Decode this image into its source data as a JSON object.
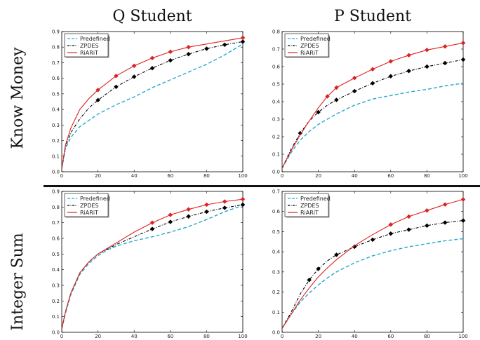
{
  "col_titles": [
    "Q Student",
    "P Student"
  ],
  "row_titles": [
    "Know Money",
    "Integer Sum"
  ],
  "colors": {
    "Predefined": "#22aacc",
    "ZPDES": "#000000",
    "RiARiT": "#dd2222"
  },
  "chart_data": [
    {
      "type": "line",
      "row": "Know Money",
      "col": "Q Student",
      "xlim": [
        0,
        100
      ],
      "ylim": [
        0,
        0.9
      ],
      "xticks": [
        "0",
        "20",
        "40",
        "60",
        "80",
        "100"
      ],
      "yticks": [
        "0.0",
        "0.1",
        "0.2",
        "0.3",
        "0.4",
        "0.5",
        "0.6",
        "0.7",
        "0.8",
        "0.9"
      ],
      "legend": "top-left",
      "series": [
        {
          "name": "Predefined",
          "style": "dashed",
          "x": [
            0,
            2,
            5,
            10,
            15,
            20,
            30,
            40,
            50,
            60,
            70,
            80,
            90,
            100
          ],
          "y": [
            0.02,
            0.15,
            0.22,
            0.29,
            0.33,
            0.37,
            0.43,
            0.48,
            0.54,
            0.59,
            0.64,
            0.69,
            0.75,
            0.82
          ]
        },
        {
          "name": "ZPDES",
          "style": "dashdot-diamond",
          "x": [
            0,
            2,
            5,
            10,
            15,
            20,
            30,
            40,
            50,
            60,
            70,
            80,
            90,
            100
          ],
          "y": [
            0.02,
            0.16,
            0.25,
            0.34,
            0.41,
            0.46,
            0.545,
            0.61,
            0.665,
            0.715,
            0.755,
            0.79,
            0.815,
            0.835
          ],
          "markers": [
            20,
            30,
            40,
            50,
            60,
            70,
            80,
            90,
            100
          ]
        },
        {
          "name": "RiARiT",
          "style": "solid-diamond",
          "x": [
            0,
            2,
            5,
            10,
            15,
            20,
            30,
            40,
            50,
            60,
            70,
            80,
            90,
            100
          ],
          "y": [
            0.02,
            0.17,
            0.28,
            0.4,
            0.47,
            0.525,
            0.615,
            0.68,
            0.73,
            0.77,
            0.8,
            0.82,
            0.84,
            0.86
          ],
          "markers": [
            20,
            30,
            40,
            50,
            60,
            70,
            100
          ]
        }
      ]
    },
    {
      "type": "line",
      "row": "Know Money",
      "col": "P Student",
      "xlim": [
        0,
        100
      ],
      "ylim": [
        0,
        0.8
      ],
      "xticks": [
        "0",
        "20",
        "40",
        "60",
        "80",
        "100"
      ],
      "yticks": [
        "0.0",
        "0.1",
        "0.2",
        "0.3",
        "0.4",
        "0.5",
        "0.6",
        "0.7",
        "0.8"
      ],
      "legend": "top-left",
      "series": [
        {
          "name": "Predefined",
          "style": "dashed",
          "x": [
            0,
            5,
            10,
            15,
            20,
            25,
            30,
            40,
            50,
            60,
            70,
            80,
            90,
            100
          ],
          "y": [
            0.02,
            0.11,
            0.18,
            0.23,
            0.27,
            0.3,
            0.33,
            0.38,
            0.415,
            0.435,
            0.455,
            0.47,
            0.49,
            0.505
          ]
        },
        {
          "name": "ZPDES",
          "style": "dashdot-diamond",
          "x": [
            0,
            5,
            10,
            15,
            20,
            25,
            30,
            40,
            50,
            60,
            70,
            80,
            90,
            100
          ],
          "y": [
            0.02,
            0.13,
            0.22,
            0.29,
            0.34,
            0.38,
            0.41,
            0.46,
            0.505,
            0.545,
            0.575,
            0.6,
            0.62,
            0.64
          ],
          "markers": [
            10,
            20,
            30,
            40,
            50,
            60,
            70,
            80,
            90,
            100
          ]
        },
        {
          "name": "RiARiT",
          "style": "solid-diamond",
          "x": [
            0,
            5,
            10,
            15,
            20,
            25,
            30,
            40,
            50,
            60,
            70,
            80,
            90,
            100
          ],
          "y": [
            0.02,
            0.12,
            0.21,
            0.29,
            0.365,
            0.43,
            0.48,
            0.535,
            0.585,
            0.63,
            0.665,
            0.695,
            0.715,
            0.735
          ],
          "markers": [
            25,
            30,
            40,
            50,
            60,
            70,
            80,
            90,
            100
          ]
        }
      ]
    },
    {
      "type": "line",
      "row": "Integer Sum",
      "col": "Q Student",
      "xlim": [
        0,
        100
      ],
      "ylim": [
        0,
        0.9
      ],
      "xticks": [
        "0",
        "20",
        "40",
        "60",
        "80",
        "100"
      ],
      "yticks": [
        "0.0",
        "0.1",
        "0.2",
        "0.3",
        "0.4",
        "0.5",
        "0.6",
        "0.7",
        "0.8",
        "0.9"
      ],
      "legend": "top-left",
      "series": [
        {
          "name": "Predefined",
          "style": "dashed",
          "x": [
            0,
            2,
            5,
            10,
            15,
            20,
            25,
            30,
            40,
            50,
            60,
            70,
            80,
            90,
            100
          ],
          "y": [
            0.02,
            0.12,
            0.24,
            0.37,
            0.44,
            0.49,
            0.525,
            0.55,
            0.585,
            0.61,
            0.64,
            0.675,
            0.72,
            0.77,
            0.81
          ]
        },
        {
          "name": "ZPDES",
          "style": "dashdot-diamond",
          "x": [
            0,
            2,
            5,
            10,
            15,
            20,
            25,
            30,
            40,
            50,
            60,
            70,
            80,
            90,
            100
          ],
          "y": [
            0.02,
            0.13,
            0.25,
            0.38,
            0.45,
            0.5,
            0.53,
            0.56,
            0.61,
            0.66,
            0.705,
            0.74,
            0.77,
            0.795,
            0.815
          ],
          "markers": [
            50,
            60,
            70,
            80,
            90,
            100
          ]
        },
        {
          "name": "RiARiT",
          "style": "solid-diamond",
          "x": [
            0,
            2,
            5,
            10,
            15,
            20,
            25,
            30,
            40,
            50,
            60,
            70,
            80,
            90,
            100
          ],
          "y": [
            0.02,
            0.13,
            0.25,
            0.38,
            0.45,
            0.5,
            0.535,
            0.57,
            0.64,
            0.7,
            0.75,
            0.785,
            0.815,
            0.835,
            0.85
          ],
          "markers": [
            50,
            60,
            70,
            80,
            90,
            100
          ]
        }
      ]
    },
    {
      "type": "line",
      "row": "Integer Sum",
      "col": "P Student",
      "xlim": [
        0,
        100
      ],
      "ylim": [
        0,
        0.7
      ],
      "xticks": [
        "0",
        "20",
        "40",
        "60",
        "80",
        "100"
      ],
      "yticks": [
        "0.0",
        "0.1",
        "0.2",
        "0.3",
        "0.4",
        "0.5",
        "0.6",
        "0.7"
      ],
      "legend": "top-left",
      "series": [
        {
          "name": "Predefined",
          "style": "dashed",
          "x": [
            0,
            5,
            10,
            15,
            20,
            25,
            30,
            40,
            50,
            60,
            70,
            80,
            90,
            100
          ],
          "y": [
            0.02,
            0.09,
            0.15,
            0.195,
            0.235,
            0.27,
            0.3,
            0.345,
            0.38,
            0.405,
            0.425,
            0.44,
            0.455,
            0.465
          ]
        },
        {
          "name": "ZPDES",
          "style": "dashdot-diamond",
          "x": [
            0,
            5,
            10,
            15,
            20,
            25,
            30,
            40,
            50,
            60,
            70,
            80,
            90,
            100
          ],
          "y": [
            0.02,
            0.1,
            0.19,
            0.26,
            0.315,
            0.355,
            0.385,
            0.425,
            0.46,
            0.49,
            0.51,
            0.53,
            0.545,
            0.555
          ],
          "markers": [
            15,
            20,
            30,
            40,
            50,
            60,
            70,
            80,
            90,
            100
          ]
        },
        {
          "name": "RiARiT",
          "style": "solid-diamond",
          "x": [
            0,
            5,
            10,
            15,
            20,
            25,
            30,
            40,
            50,
            60,
            70,
            80,
            90,
            100
          ],
          "y": [
            0.02,
            0.09,
            0.16,
            0.22,
            0.275,
            0.32,
            0.36,
            0.43,
            0.485,
            0.535,
            0.575,
            0.605,
            0.635,
            0.66
          ],
          "markers": [
            60,
            70,
            80,
            90,
            100
          ]
        }
      ]
    }
  ]
}
